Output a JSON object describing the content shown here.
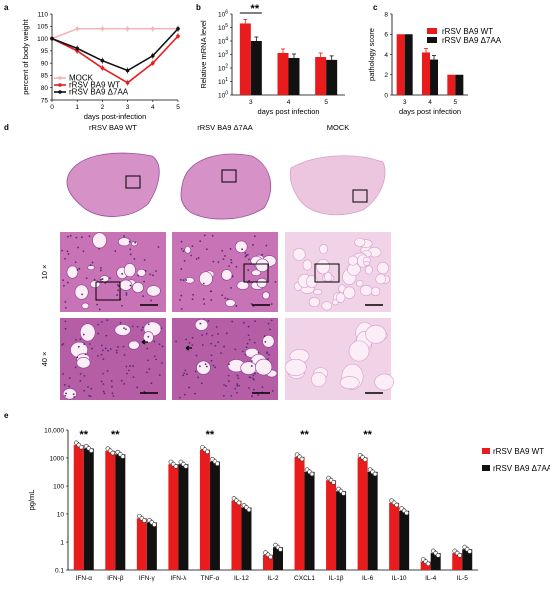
{
  "colors": {
    "mock": "#f5b5b5",
    "wt": "#e81c1c",
    "mut": "#111111",
    "histo_bg": "#ffffff",
    "histo_pink": "#d98bc0",
    "histo_purple": "#8a3a9a"
  },
  "panels": {
    "a": "a",
    "b": "b",
    "c": "c",
    "d": "d",
    "e": "e"
  },
  "histology": {
    "columns": [
      "rRSV BA9 WT",
      "rRSV BA9 Δ7AA",
      "MOCK"
    ],
    "rows": [
      "",
      "10 ×",
      "40 ×"
    ]
  },
  "chart_data": [
    {
      "id": "a",
      "type": "line",
      "xlabel": "days post-infection",
      "ylabel": "percent of body weight",
      "x": [
        0,
        1,
        2,
        3,
        4,
        5
      ],
      "xlim": [
        0,
        5
      ],
      "ylim": [
        75,
        110
      ],
      "yticks": [
        75,
        80,
        85,
        90,
        95,
        100,
        105,
        110
      ],
      "series": [
        {
          "name": "MOCK",
          "color": "#f5b5b5",
          "values": [
            100,
            104,
            104,
            104,
            104,
            104
          ]
        },
        {
          "name": "rRSV BA9 WT",
          "color": "#e81c1c",
          "values": [
            100,
            95,
            88,
            82,
            90,
            101
          ]
        },
        {
          "name": "rRSV BA9 Δ7AA",
          "color": "#111111",
          "values": [
            100,
            96,
            91,
            87,
            93,
            104
          ]
        }
      ],
      "legend": "bottom-left"
    },
    {
      "id": "b",
      "type": "bar",
      "scale": "log",
      "xlabel": "days post infection",
      "ylabel": "Relative mRNA level",
      "categories": [
        "3",
        "4",
        "5"
      ],
      "yticks_labels": [
        "10^0",
        "10^1",
        "10^2",
        "10^3",
        "10^4",
        "10^5",
        "10^6"
      ],
      "ylim_log": [
        0,
        6
      ],
      "series": [
        {
          "name": "rRSV BA9 WT",
          "color": "#e81c1c",
          "values": [
            200000,
            1300,
            650
          ]
        },
        {
          "name": "rRSV BA9 Δ7AA",
          "color": "#111111",
          "values": [
            10000,
            550,
            400
          ]
        }
      ],
      "annotation": "**"
    },
    {
      "id": "c",
      "type": "bar",
      "xlabel": "days post infection",
      "ylabel": "pathology score",
      "categories": [
        "3",
        "4",
        "5"
      ],
      "ylim": [
        0,
        8
      ],
      "yticks": [
        0,
        2,
        4,
        6,
        8
      ],
      "series": [
        {
          "name": "rRSV BA9 WT",
          "color": "#e81c1c",
          "values": [
            6,
            4.2,
            2
          ]
        },
        {
          "name": "rRSV BA9 Δ7AA",
          "color": "#111111",
          "values": [
            6,
            3.5,
            2
          ]
        }
      ],
      "legend": "top-right"
    },
    {
      "id": "e",
      "type": "bar",
      "scale": "log",
      "ylabel": "pg/mL",
      "categories": [
        "IFN-α",
        "IFN-β",
        "IFN-γ",
        "IFN-λ",
        "TNF-α",
        "IL-12",
        "IL-2",
        "CXCL1",
        "IL-1β",
        "IL-6",
        "IL-10",
        "IL-4",
        "IL-5"
      ],
      "yticks_labels": [
        "0.1",
        "1",
        "10",
        "100",
        "1000",
        "10,000"
      ],
      "ylim": [
        0.1,
        10000
      ],
      "series": [
        {
          "name": "rRSV BA9 WT",
          "color": "#e81c1c",
          "values": [
            2900,
            1800,
            7,
            600,
            2000,
            30,
            0.35,
            1100,
            160,
            1050,
            25,
            0.2,
            0.4
          ]
        },
        {
          "name": "rRSV BA9 Δ7AA",
          "color": "#111111",
          "values": [
            2200,
            1350,
            5,
            600,
            750,
            17,
            0.65,
            320,
            65,
            320,
            13,
            0.4,
            0.55
          ]
        }
      ],
      "significance": [
        "**",
        "**",
        "",
        "",
        "**",
        "",
        "",
        "**",
        "",
        "**",
        "",
        "",
        ""
      ],
      "legend": "right"
    }
  ]
}
